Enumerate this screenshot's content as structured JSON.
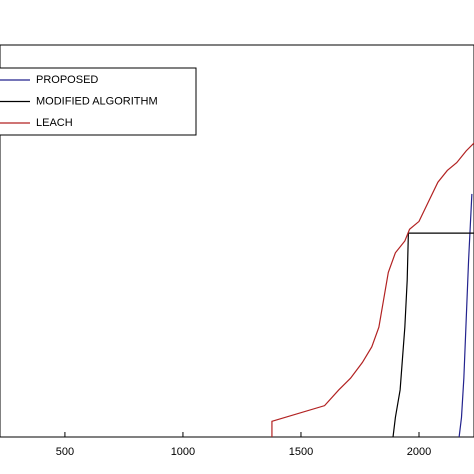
{
  "chart_data": {
    "type": "line",
    "xlim": [
      225,
      2233
    ],
    "xticks": [
      500,
      1000,
      1500,
      2000
    ],
    "ylim": [
      0,
      100
    ],
    "legend": "upper-left",
    "series": [
      {
        "name": "PROPOSED",
        "color": "#23238e",
        "x": [
          2170,
          2180,
          2190,
          2200,
          2210,
          2224
        ],
        "values": [
          0,
          5,
          15,
          30,
          45,
          62
        ]
      },
      {
        "name": "MODIFIED ALGORITHM",
        "color": "#000000",
        "x": [
          1890,
          1900,
          1920,
          1930,
          1940,
          1950,
          1955,
          2233
        ],
        "values": [
          0,
          5,
          12,
          20,
          28,
          40,
          52,
          52
        ]
      },
      {
        "name": "LEACH",
        "color": "#b22222",
        "x": [
          1377,
          1377,
          1600,
          1660,
          1710,
          1760,
          1800,
          1830,
          1850,
          1870,
          1900,
          1940,
          1960,
          2000,
          2040,
          2080,
          2120,
          2160,
          2200,
          2233
        ],
        "values": [
          0,
          4,
          8,
          12,
          15,
          19,
          23,
          28,
          35,
          42,
          47,
          50,
          53,
          55,
          60,
          65,
          68,
          70,
          73,
          75
        ]
      }
    ]
  }
}
